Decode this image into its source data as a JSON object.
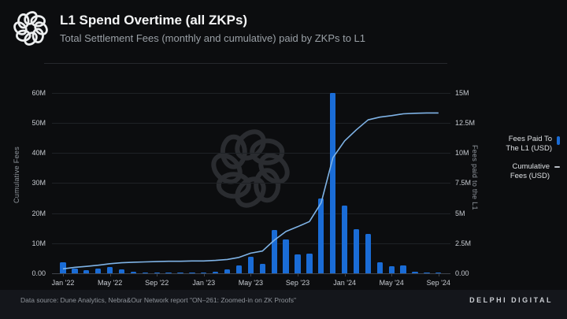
{
  "header": {
    "title": "L1 Spend Overtime (all ZKPs)",
    "subtitle": "Total Settlement Fees (monthly and cumulative) paid by ZKPs to L1"
  },
  "legend": {
    "items": [
      {
        "line1": "Fees Paid To",
        "line2": "The L1 (USD)",
        "marker": "bar",
        "marker_color": "#1a6cd6"
      },
      {
        "line1": "Cumulative",
        "line2": "Fees (USD)",
        "marker": "dash",
        "marker_color": "#b9bec5"
      }
    ]
  },
  "footer": {
    "source": "Data source: Dune Analytics, Nebra&Our Network report \"ON–261: Zoomed-in on ZK Proofs\"",
    "brand": "DELPHI DIGITAL"
  },
  "chart_data": {
    "type": "bar",
    "title": "L1 Spend Overtime (all ZKPs)",
    "subtitle": "Total Settlement Fees (monthly and cumulative) paid by ZKPs to L1",
    "values_unit": "USD millions",
    "grid": true,
    "legend_position": "right",
    "x": [
      "Jan '22",
      "Feb '22",
      "Mar '22",
      "Apr '22",
      "May '22",
      "Jun '22",
      "Jul '22",
      "Aug '22",
      "Sep '22",
      "Oct '22",
      "Nov '22",
      "Dec '22",
      "Jan '23",
      "Feb '23",
      "Mar '23",
      "Apr '23",
      "May '23",
      "Jun '23",
      "Jul '23",
      "Aug '23",
      "Sep '23",
      "Oct '23",
      "Nov '23",
      "Dec '23",
      "Jan '24",
      "Feb '24",
      "Mar '24",
      "Apr '24",
      "May '24",
      "Jun '24",
      "Jul '24",
      "Aug '24",
      "Sep '24"
    ],
    "x_tick_labels": [
      "Jan '22",
      "May '22",
      "Sep '22",
      "Jan '23",
      "May '23",
      "Sep '23",
      "Jan '24",
      "May '24",
      "Sep '24"
    ],
    "series": [
      {
        "name": "Fees Paid To The L1 (USD)",
        "type": "bar",
        "axis": "right",
        "color": "#1a6cd6",
        "values": [
          0.95,
          0.42,
          0.26,
          0.38,
          0.5,
          0.33,
          0.14,
          0.1,
          0.06,
          0.04,
          0.03,
          0.02,
          0.05,
          0.15,
          0.33,
          0.65,
          1.4,
          0.78,
          3.6,
          2.85,
          1.6,
          1.65,
          6.2,
          15,
          5.6,
          3.7,
          3.3,
          0.9,
          0.57,
          0.63,
          0.13,
          0.07,
          0.03
        ]
      },
      {
        "name": "Cumulative Fees (USD)",
        "type": "line",
        "axis": "left",
        "color": "#7fb3e6",
        "values": [
          1.5,
          2,
          2.3,
          2.7,
          3.2,
          3.5,
          3.7,
          3.8,
          3.9,
          4,
          4,
          4.1,
          4.1,
          4.3,
          4.6,
          5.3,
          6.7,
          7.4,
          11,
          13.9,
          15.5,
          17.2,
          23.4,
          38.4,
          44,
          47.7,
          51,
          51.9,
          52.4,
          53,
          53.2,
          53.3,
          53.3
        ]
      }
    ],
    "left_axis": {
      "label": "Cumulative Fees",
      "ticks": [
        "0.00",
        "10M",
        "20M",
        "30M",
        "40M",
        "50M",
        "60M"
      ],
      "range_millions": [
        0,
        60
      ]
    },
    "right_axis": {
      "label": "Fees paid to the L1",
      "ticks": [
        "0.00",
        "2.5M",
        "5M",
        "7.5M",
        "10M",
        "12.5M",
        "15M"
      ],
      "range_millions": [
        0,
        15
      ]
    }
  }
}
